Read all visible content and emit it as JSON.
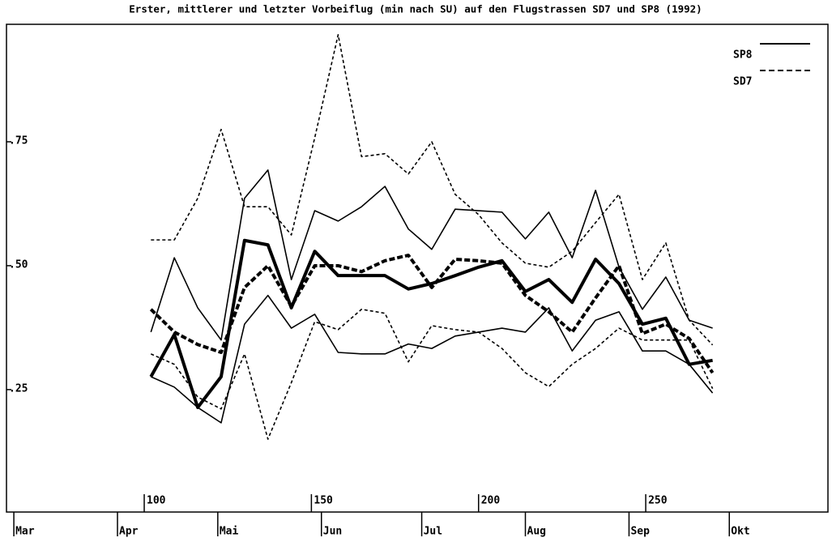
{
  "chart_data": {
    "type": "line",
    "title": "Erster, mittlerer und letzter Vorbeiflug (min nach SU) auf den Flugstrassen SD7 und SP8 (1992)",
    "x": [
      102,
      109,
      116,
      123,
      130,
      137,
      144,
      151,
      158,
      165,
      172,
      179,
      186,
      193,
      200,
      207,
      214,
      221,
      228,
      235,
      242,
      249,
      256,
      263,
      270
    ],
    "series": [
      {
        "name": "SP8",
        "color": "#000000",
        "dashed": false,
        "values": [
          [
            0.276,
            0.255,
            0.214,
            0.183,
            0.382,
            0.44,
            0.374,
            0.402,
            0.325,
            0.322,
            0.322,
            0.342,
            0.333,
            0.358,
            0.366,
            0.374,
            0.366,
            0.415,
            0.328,
            0.39,
            0.407,
            0.328,
            0.328,
            0.301,
            0.243
          ],
          [
            0.276,
            0.361,
            0.214,
            0.276,
            0.551,
            0.542,
            0.415,
            0.529,
            0.48,
            0.48,
            0.48,
            0.453,
            0.464,
            0.48,
            0.497,
            0.51,
            0.448,
            0.472,
            0.426,
            0.513,
            0.464,
            0.382,
            0.394,
            0.301,
            0.309
          ],
          [
            0.366,
            0.516,
            0.415,
            0.35,
            0.636,
            0.693,
            0.472,
            0.611,
            0.59,
            0.619,
            0.66,
            0.574,
            0.533,
            0.614,
            0.611,
            0.608,
            0.554,
            0.608,
            0.516,
            0.652,
            0.497,
            0.412,
            0.477,
            0.39,
            0.374
          ]
        ]
      },
      {
        "name": "SD7",
        "color": "#000000",
        "dashed": true,
        "values": [
          [
            0.322,
            0.301,
            0.235,
            0.211,
            0.322,
            0.15,
            0.264,
            0.387,
            0.371,
            0.412,
            0.404,
            0.306,
            0.379,
            0.371,
            0.366,
            0.333,
            0.284,
            0.256,
            0.301,
            0.333,
            0.374,
            0.35,
            0.35,
            0.35,
            0.252
          ],
          [
            0.412,
            0.366,
            0.341,
            0.325,
            0.456,
            0.5,
            0.418,
            0.5,
            0.5,
            0.488,
            0.51,
            0.521,
            0.456,
            0.513,
            0.51,
            0.505,
            0.44,
            0.407,
            0.366,
            0.435,
            0.5,
            0.363,
            0.382,
            0.353,
            0.284
          ],
          [
            0.552,
            0.552,
            0.636,
            0.775,
            0.619,
            0.619,
            0.562,
            0.758,
            0.966,
            0.72,
            0.726,
            0.685,
            0.75,
            0.644,
            0.603,
            0.546,
            0.505,
            0.497,
            0.529,
            0.587,
            0.644,
            0.472,
            0.546,
            0.39,
            0.34
          ]
        ]
      }
    ],
    "xlim": [
      58.8,
      304.5
    ],
    "xticks": [
      100,
      150,
      200,
      250
    ],
    "month_ticks": [
      {
        "value": 61,
        "label": "Mar"
      },
      {
        "value": 92,
        "label": "Apr"
      },
      {
        "value": 122,
        "label": "Mai"
      },
      {
        "value": 153,
        "label": "Jun"
      },
      {
        "value": 183,
        "label": "Jul"
      },
      {
        "value": 214,
        "label": "Aug"
      },
      {
        "value": 245,
        "label": "Sep"
      },
      {
        "value": 275,
        "label": "Okt"
      }
    ],
    "ylim": [
      0.003,
      0.987
    ],
    "yticks": [
      {
        "value": 0.25,
        "label": ".25"
      },
      {
        "value": 0.5,
        "label": ".50"
      },
      {
        "value": 0.75,
        "label": ".75"
      }
    ],
    "legend": "top-right"
  }
}
